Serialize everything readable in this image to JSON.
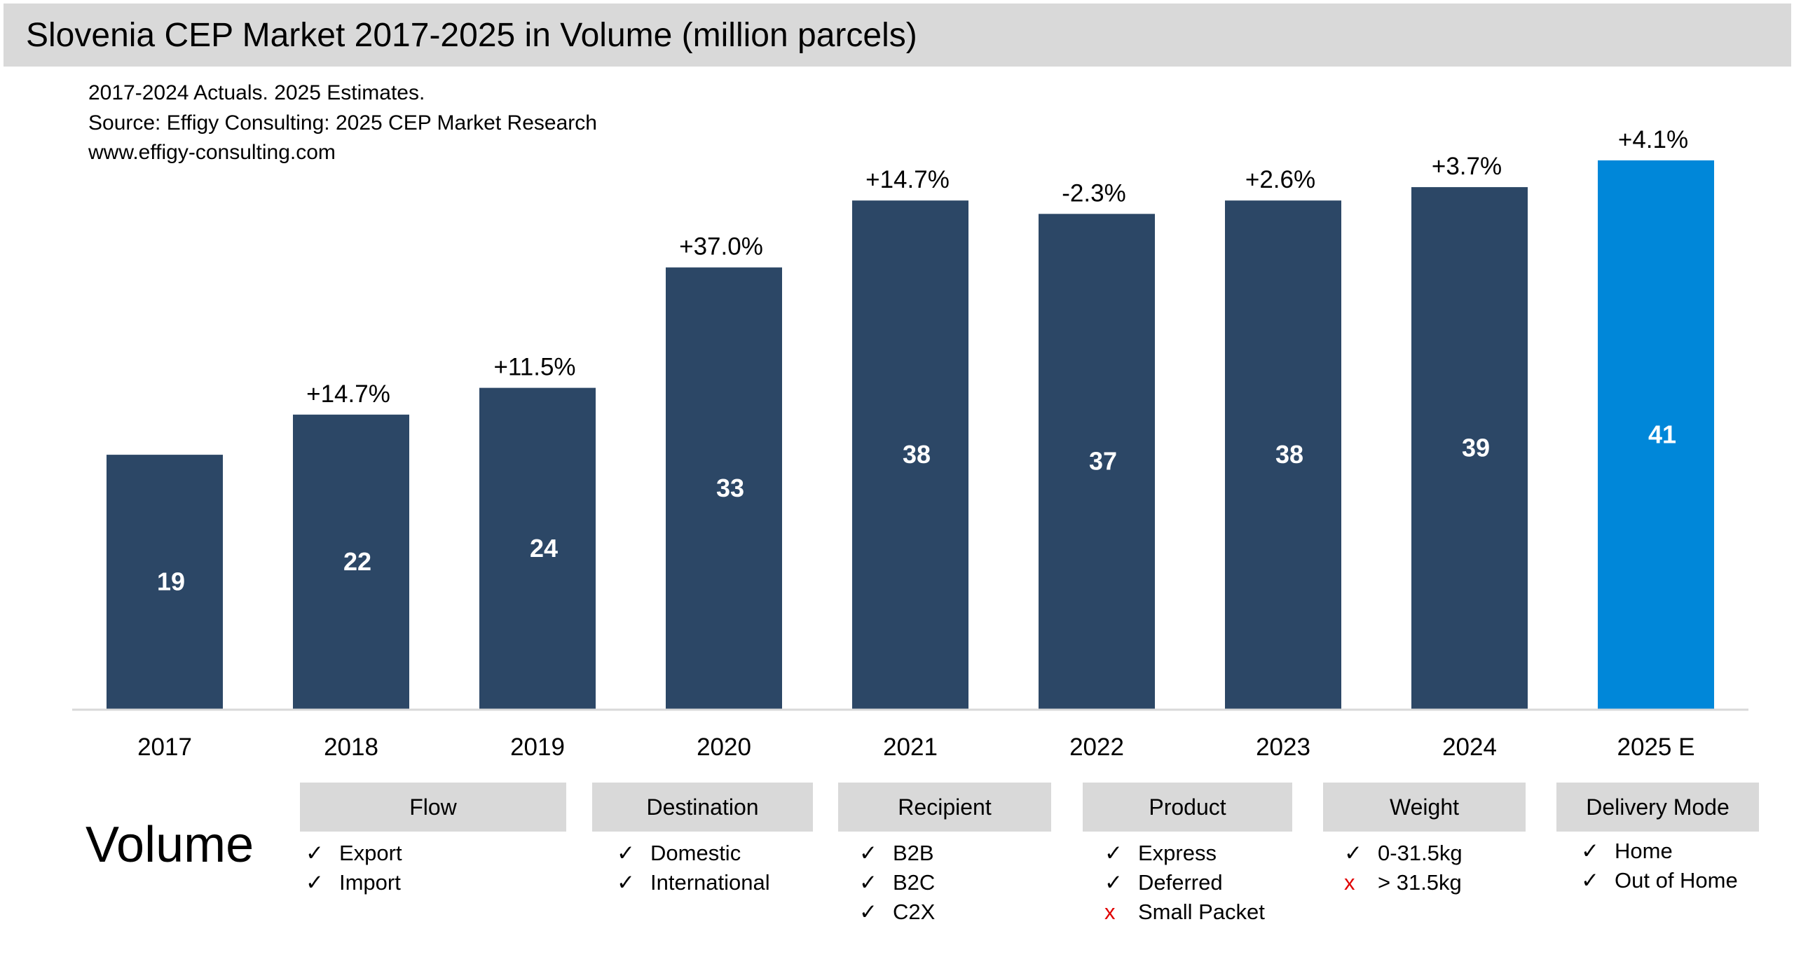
{
  "title": "Slovenia CEP Market 2017-2025 in Volume (million parcels)",
  "notes": [
    "2017-2024 Actuals. 2025 Estimates.",
    "Source: Effigy Consulting: 2025 CEP Market Research",
    "www.effigy-consulting.com"
  ],
  "colors": {
    "actual": "#2c4766",
    "estimate": "#0087d9",
    "header_bg": "#d9d9d9",
    "cross": "#e00000"
  },
  "chart_data": {
    "type": "bar",
    "categories": [
      "2017",
      "2018",
      "2019",
      "2020",
      "2021",
      "2022",
      "2023",
      "2024",
      "2025 E"
    ],
    "values": [
      19,
      22,
      24,
      33,
      38,
      37,
      38,
      39,
      41
    ],
    "value_labels": [
      "19",
      "22",
      "24",
      "33",
      "38",
      "37",
      "38",
      "39",
      "41"
    ],
    "growth_labels": [
      "",
      "+14.7%",
      "+11.5%",
      "+37.0%",
      "+14.7%",
      "-2.3%",
      "+2.6%",
      "+3.7%",
      "+4.1%"
    ],
    "estimate_flags": [
      false,
      false,
      false,
      false,
      false,
      false,
      false,
      false,
      true
    ],
    "ylim": [
      0,
      41
    ],
    "grid": false,
    "yaxis_shown": false
  },
  "segment_title": "Volume",
  "segments": [
    {
      "label": "Flow",
      "items": [
        {
          "mark": "check",
          "text": "Export"
        },
        {
          "mark": "check",
          "text": "Import"
        }
      ]
    },
    {
      "label": "Destination",
      "items": [
        {
          "mark": "check",
          "text": "Domestic"
        },
        {
          "mark": "check",
          "text": "International"
        }
      ]
    },
    {
      "label": "Recipient",
      "items": [
        {
          "mark": "check",
          "text": "B2B"
        },
        {
          "mark": "check",
          "text": "B2C"
        },
        {
          "mark": "check",
          "text": "C2X"
        }
      ]
    },
    {
      "label": "Product",
      "items": [
        {
          "mark": "check",
          "text": "Express"
        },
        {
          "mark": "check",
          "text": "Deferred"
        },
        {
          "mark": "cross",
          "text": "Small Packet"
        }
      ]
    },
    {
      "label": "Weight",
      "items": [
        {
          "mark": "check",
          "text": "0-31.5kg"
        },
        {
          "mark": "cross",
          "text": "> 31.5kg"
        }
      ]
    },
    {
      "label": "Delivery Mode",
      "items": [
        {
          "mark": "check",
          "text": "Home"
        },
        {
          "mark": "check",
          "text": "Out of Home"
        }
      ]
    }
  ]
}
